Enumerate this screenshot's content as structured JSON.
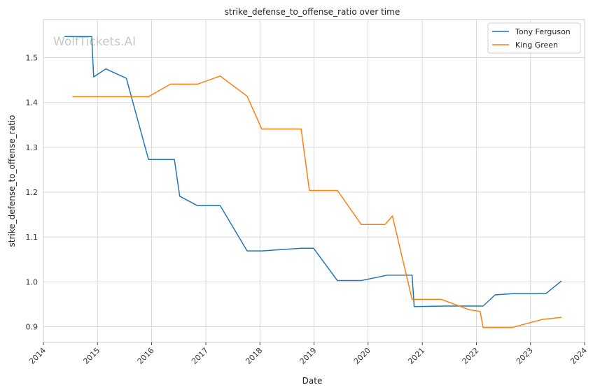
{
  "watermark": "WolfTickets.AI",
  "chart_data": {
    "type": "line",
    "title": "strike_defense_to_offense_ratio over time",
    "xlabel": "Date",
    "ylabel": "strike_defense_to_offense_ratio",
    "xlim": [
      "2014-01-01",
      "2024-01-01"
    ],
    "ylim": [
      0.865,
      1.585
    ],
    "x_ticks": [
      "2014",
      "2015",
      "2016",
      "2017",
      "2018",
      "2019",
      "2020",
      "2021",
      "2022",
      "2023",
      "2024"
    ],
    "y_ticks": [
      "0.9",
      "1.0",
      "1.1",
      "1.2",
      "1.3",
      "1.4",
      "1.5"
    ],
    "grid": true,
    "legend": "top-right",
    "series": [
      {
        "name": "Tony Ferguson",
        "color": "#1f77b4",
        "x": [
          "2014-05-24",
          "2014-11-23",
          "2014-12-06",
          "2015-02-26",
          "2015-07-15",
          "2015-12-11",
          "2016-06-03",
          "2016-07-09",
          "2016-11-06",
          "2017-04-08",
          "2017-10-07",
          "2018-01-18",
          "2018-10-06",
          "2018-12-29",
          "2019-06-08",
          "2019-11-16",
          "2020-05-09",
          "2020-10-24",
          "2020-11-07",
          "2021-06-05",
          "2022-02-15",
          "2022-05-07",
          "2022-09-10",
          "2023-04-15",
          "2023-07-29"
        ],
        "values": [
          1.547,
          1.547,
          1.457,
          1.475,
          1.454,
          1.273,
          1.273,
          1.191,
          1.17,
          1.17,
          1.069,
          1.069,
          1.075,
          1.075,
          1.003,
          1.003,
          1.015,
          1.015,
          0.945,
          0.946,
          0.946,
          0.971,
          0.974,
          0.974,
          1.002
        ]
      },
      {
        "name": "King Green",
        "color": "#ff7f0e",
        "x": [
          "2014-07-16",
          "2015-12-11",
          "2016-05-07",
          "2016-11-06",
          "2017-04-08",
          "2017-10-07",
          "2018-01-13",
          "2018-10-06",
          "2018-12-01",
          "2019-06-08",
          "2019-11-16",
          "2020-04-25",
          "2020-06-13",
          "2020-10-24",
          "2021-05-08",
          "2021-11-13",
          "2022-01-26",
          "2022-02-15",
          "2022-08-27",
          "2022-11-26",
          "2023-03-18",
          "2023-07-29"
        ],
        "values": [
          1.413,
          1.413,
          1.441,
          1.441,
          1.459,
          1.414,
          1.341,
          1.341,
          1.204,
          1.204,
          1.128,
          1.128,
          1.147,
          0.961,
          0.961,
          0.938,
          0.934,
          0.898,
          0.898,
          0.906,
          0.916,
          0.921
        ]
      }
    ]
  }
}
